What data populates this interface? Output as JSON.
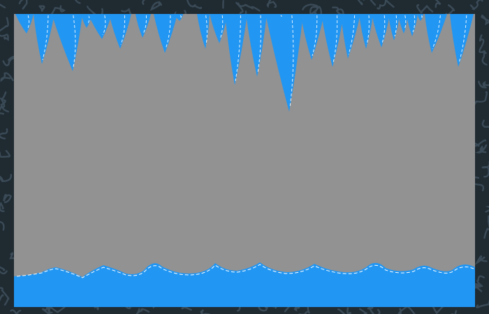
{
  "scene": {
    "colors": {
      "border_bg": "#1f2a31",
      "border_squiggle": "#3a4a56",
      "cave_bg": "#929292",
      "ice": "#2196f3",
      "ice_highlight": "#ffffff"
    },
    "icicle_count": 26,
    "floor_wave_count": 9
  }
}
